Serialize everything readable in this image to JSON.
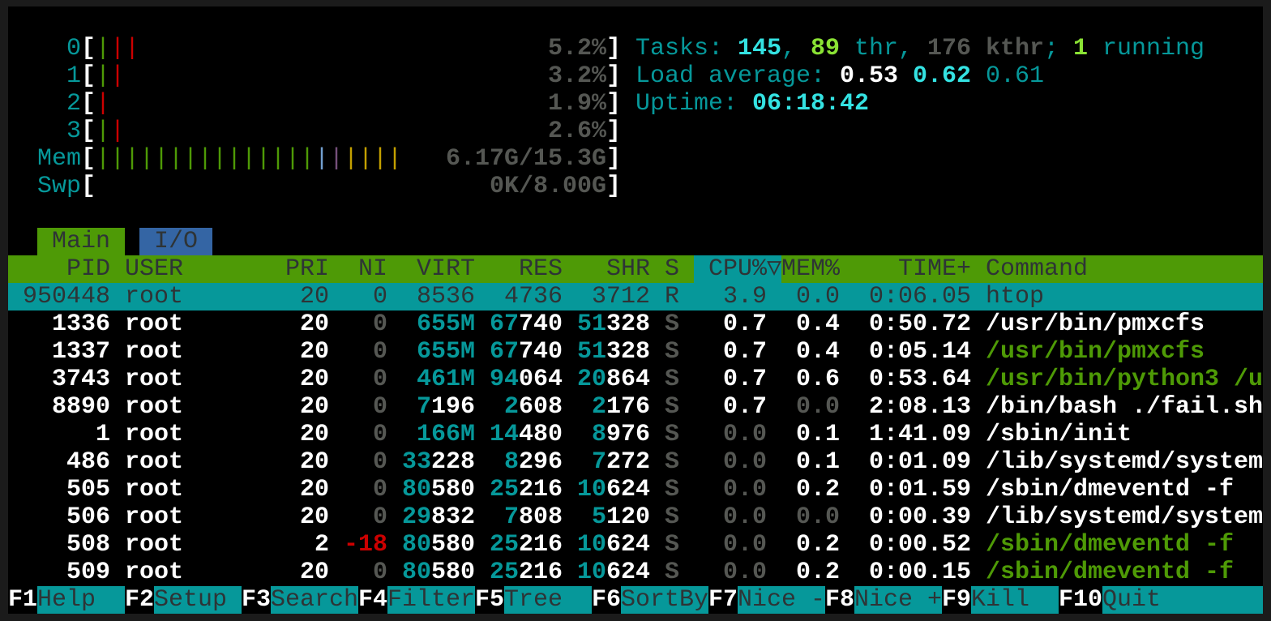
{
  "colors": {
    "cyan": "#06989a",
    "bright_cyan": "#34e2e2",
    "green": "#4e9a06",
    "bright_green": "#8ae234",
    "red": "#cc0000",
    "blue": "#729fcf",
    "purple": "#75507b",
    "yellow": "#c4a000",
    "gray": "#555753",
    "white": "#ffffff",
    "dark": "#2e3436",
    "io_tab": "#3465a4"
  },
  "meters": [
    {
      "label": "0",
      "bars": [
        "green",
        "red",
        "red"
      ],
      "value": "5.2%"
    },
    {
      "label": "1",
      "bars": [
        "green",
        "red"
      ],
      "value": "3.2%"
    },
    {
      "label": "2",
      "bars": [
        "red"
      ],
      "value": "1.9%"
    },
    {
      "label": "3",
      "bars": [
        "green",
        "red"
      ],
      "value": "2.6%"
    },
    {
      "label": "Mem",
      "bars": [
        "green",
        "green",
        "green",
        "green",
        "green",
        "green",
        "green",
        "green",
        "green",
        "green",
        "green",
        "green",
        "green",
        "green",
        "green",
        "blue",
        "purple",
        "yellow",
        "yellow",
        "yellow",
        "yellow"
      ],
      "value": "6.17G/15.3G"
    },
    {
      "label": "Swp",
      "bars": [],
      "value": "0K/8.00G"
    }
  ],
  "summary": {
    "tasks": [
      {
        "t": "Tasks: ",
        "c": "cyan"
      },
      {
        "t": "145",
        "c": "bright_cyan",
        "b": true
      },
      {
        "t": ", ",
        "c": "cyan"
      },
      {
        "t": "89",
        "c": "bright_green",
        "b": true
      },
      {
        "t": " thr, ",
        "c": "cyan"
      },
      {
        "t": "176 kthr",
        "c": "gray",
        "b": true
      },
      {
        "t": "; ",
        "c": "cyan"
      },
      {
        "t": "1",
        "c": "bright_green",
        "b": true
      },
      {
        "t": " running",
        "c": "cyan"
      }
    ],
    "load": [
      {
        "t": "Load average: ",
        "c": "cyan"
      },
      {
        "t": "0.53 ",
        "c": "white",
        "b": true
      },
      {
        "t": "0.62 ",
        "c": "bright_cyan",
        "b": true
      },
      {
        "t": "0.61",
        "c": "cyan"
      }
    ],
    "uptime": [
      {
        "t": "Uptime: ",
        "c": "cyan"
      },
      {
        "t": "06:18:42",
        "c": "bright_cyan",
        "b": true
      }
    ]
  },
  "tabs": [
    {
      "label": "Main",
      "active": true
    },
    {
      "label": "I/O",
      "active": false
    }
  ],
  "columns": [
    "PID",
    "USER",
    "PRI",
    "NI",
    "VIRT",
    "RES",
    "SHR",
    "S",
    "CPU%",
    "▽",
    "MEM%",
    "TIME+",
    "Command"
  ],
  "sort_column": "CPU%",
  "processes": [
    {
      "pid": "950448",
      "user": "root",
      "pri": "20",
      "ni": "0",
      "virt": "8536",
      "res": "4736",
      "shr": "3712",
      "s": "R",
      "cpu": "3.9",
      "mem": "0.0",
      "time": "0:06.05",
      "cmd": "htop",
      "selected": true
    },
    {
      "pid": "1336",
      "user": "root",
      "pri": "20",
      "ni": "0",
      "virt": "655M",
      "res": "67740",
      "shr": "51328",
      "s": "S",
      "cpu": "0.7",
      "mem": "0.4",
      "time": "0:50.72",
      "cmd": "/usr/bin/pmxcfs"
    },
    {
      "pid": "1337",
      "user": "root",
      "pri": "20",
      "ni": "0",
      "virt": "655M",
      "res": "67740",
      "shr": "51328",
      "s": "S",
      "cpu": "0.7",
      "mem": "0.4",
      "time": "0:05.14",
      "cmd": "/usr/bin/pmxcfs",
      "thread": true
    },
    {
      "pid": "3743",
      "user": "root",
      "pri": "20",
      "ni": "0",
      "virt": "461M",
      "res": "94064",
      "shr": "20864",
      "s": "S",
      "cpu": "0.7",
      "mem": "0.6",
      "time": "0:53.64",
      "cmd": "/usr/bin/python3 /u",
      "thread": true
    },
    {
      "pid": "8890",
      "user": "root",
      "pri": "20",
      "ni": "0",
      "virt": "7196",
      "res": "2608",
      "shr": "2176",
      "s": "S",
      "cpu": "0.7",
      "mem": "0.0",
      "time": "2:08.13",
      "cmd": "/bin/bash ./fail.sh"
    },
    {
      "pid": "1",
      "user": "root",
      "pri": "20",
      "ni": "0",
      "virt": "166M",
      "res": "14480",
      "shr": "8976",
      "s": "S",
      "cpu": "0.0",
      "mem": "0.1",
      "time": "1:41.09",
      "cmd": "/sbin/init"
    },
    {
      "pid": "486",
      "user": "root",
      "pri": "20",
      "ni": "0",
      "virt": "33228",
      "res": "8296",
      "shr": "7272",
      "s": "S",
      "cpu": "0.0",
      "mem": "0.1",
      "time": "0:01.09",
      "cmd": "/lib/systemd/system"
    },
    {
      "pid": "505",
      "user": "root",
      "pri": "20",
      "ni": "0",
      "virt": "80580",
      "res": "25216",
      "shr": "10624",
      "s": "S",
      "cpu": "0.0",
      "mem": "0.2",
      "time": "0:01.59",
      "cmd": "/sbin/dmeventd -f"
    },
    {
      "pid": "506",
      "user": "root",
      "pri": "20",
      "ni": "0",
      "virt": "29832",
      "res": "7808",
      "shr": "5120",
      "s": "S",
      "cpu": "0.0",
      "mem": "0.0",
      "time": "0:00.39",
      "cmd": "/lib/systemd/system"
    },
    {
      "pid": "508",
      "user": "root",
      "pri": "2",
      "ni": "-18",
      "virt": "80580",
      "res": "25216",
      "shr": "10624",
      "s": "S",
      "cpu": "0.0",
      "mem": "0.2",
      "time": "0:00.52",
      "cmd": "/sbin/dmeventd -f",
      "thread": true
    },
    {
      "pid": "509",
      "user": "root",
      "pri": "20",
      "ni": "0",
      "virt": "80580",
      "res": "25216",
      "shr": "10624",
      "s": "S",
      "cpu": "0.0",
      "mem": "0.2",
      "time": "0:00.15",
      "cmd": "/sbin/dmeventd -f",
      "thread": true
    }
  ],
  "function_bar": [
    {
      "key": "F1",
      "label": "Help"
    },
    {
      "key": "F2",
      "label": "Setup"
    },
    {
      "key": "F3",
      "label": "Search"
    },
    {
      "key": "F4",
      "label": "Filter"
    },
    {
      "key": "F5",
      "label": "Tree"
    },
    {
      "key": "F6",
      "label": "SortBy"
    },
    {
      "key": "F7",
      "label": "Nice -"
    },
    {
      "key": "F8",
      "label": "Nice +"
    },
    {
      "key": "F9",
      "label": "Kill"
    },
    {
      "key": "F10",
      "label": "Quit"
    }
  ]
}
